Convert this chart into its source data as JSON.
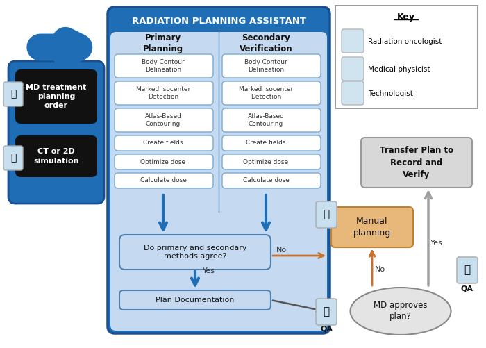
{
  "title": "Radiation Planning Assistant",
  "bg_color": "#ffffff",
  "blue_dark": "#1e6db5",
  "blue_mid": "#4a90d9",
  "blue_light": "#a8c8e8",
  "blue_lighter": "#c5daf0",
  "black_box": "#111111",
  "orange_box": "#e8b87a",
  "gray_box": "#d8d8d8",
  "white_box": "#ffffff",
  "primary_steps": [
    "Body Contour\nDelineation",
    "Marked Isocenter\nDetection",
    "Atlas-Based\nContouring",
    "Create fields",
    "Optimize dose",
    "Calculate dose"
  ],
  "secondary_steps": [
    "Body Contour\nDelineation",
    "Marked Isocenter\nDetection",
    "Atlas-Based\nContouring",
    "Create fields",
    "Optimize dose",
    "Calculate dose"
  ],
  "key_items": [
    "Radiation oncologist",
    "Medical physicist",
    "Technologist"
  ],
  "step_heights": [
    34,
    34,
    34,
    22,
    22,
    22
  ]
}
